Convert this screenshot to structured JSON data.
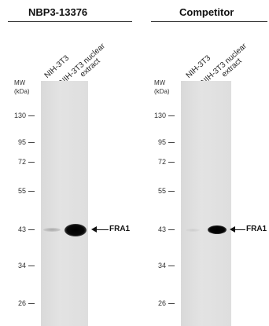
{
  "panels": [
    {
      "title": "NBP3-13376",
      "lanes": [
        {
          "lines": [
            "NIH-3T3"
          ]
        },
        {
          "lines": [
            "NIH-3T3 nuclear",
            "extract"
          ]
        }
      ],
      "mw_header": [
        "MW",
        "(kDa)"
      ],
      "markers": [
        "130",
        "95",
        "72",
        "55",
        "43",
        "34",
        "26"
      ],
      "target_label": "FRA1"
    },
    {
      "title": "Competitor",
      "lanes": [
        {
          "lines": [
            "NIH-3T3"
          ]
        },
        {
          "lines": [
            "NIH-3T3 nuclear",
            "extract"
          ]
        }
      ],
      "mw_header": [
        "MW",
        "(kDa)"
      ],
      "markers": [
        "130",
        "95",
        "72",
        "55",
        "43",
        "34",
        "26"
      ],
      "target_label": "FRA1"
    }
  ],
  "colors": {
    "band_strong": "#050505",
    "band_faint": "#bdbdbd",
    "membrane": "#e0e0e0"
  }
}
